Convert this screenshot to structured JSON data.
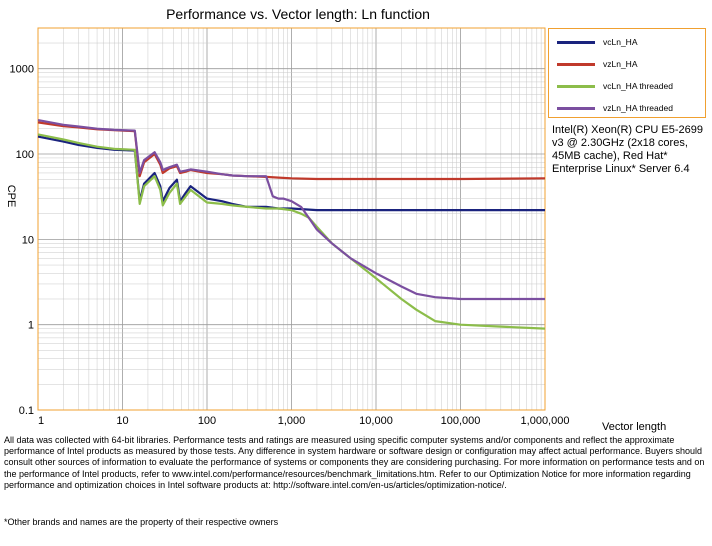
{
  "chart_data": {
    "type": "line",
    "title": "Performance vs. Vector length: Ln function",
    "xlabel": "Vector length",
    "ylabel": "CPE",
    "xscale": "log",
    "yscale": "log",
    "xlim": [
      1,
      1000000
    ],
    "ylim": [
      0.1,
      3000
    ],
    "grid": true,
    "legend_position": "right",
    "x_tick_labels": [
      "1",
      "10",
      "100",
      "1,000",
      "10,000",
      "100,000",
      "1,000,000"
    ],
    "y_tick_labels": [
      "0.1",
      "1",
      "10",
      "100",
      "1000"
    ],
    "series": [
      {
        "name": "vcLn_HA",
        "color": "#1a237e",
        "x": [
          1,
          2,
          3,
          5,
          8,
          14,
          16,
          18,
          24,
          28,
          30,
          36,
          44,
          48,
          56,
          64,
          100,
          150,
          200,
          300,
          500,
          700,
          1000,
          2000,
          10000,
          100000,
          1000000
        ],
        "y": [
          160,
          140,
          128,
          118,
          112,
          110,
          28,
          45,
          60,
          42,
          28,
          40,
          50,
          28,
          35,
          42,
          30,
          28,
          26,
          24,
          24,
          23,
          23,
          22,
          22,
          22,
          22
        ]
      },
      {
        "name": "vzLn_HA",
        "color": "#c0392b",
        "x": [
          1,
          2,
          3,
          5,
          8,
          14,
          16,
          18,
          24,
          28,
          30,
          36,
          44,
          48,
          56,
          64,
          100,
          150,
          200,
          300,
          500,
          700,
          1000,
          2000,
          10000,
          100000,
          1000000
        ],
        "y": [
          235,
          212,
          205,
          195,
          190,
          185,
          55,
          80,
          100,
          75,
          60,
          68,
          72,
          60,
          62,
          65,
          60,
          58,
          56,
          55,
          54,
          53,
          52,
          51,
          51,
          51,
          52
        ]
      },
      {
        "name": "vcLn_HA threaded",
        "color": "#8cbd4a",
        "x": [
          1,
          2,
          3,
          5,
          8,
          14,
          16,
          18,
          24,
          28,
          30,
          36,
          44,
          48,
          56,
          64,
          100,
          150,
          200,
          300,
          500,
          700,
          1000,
          1300,
          1600,
          2000,
          3000,
          5000,
          10000,
          20000,
          30000,
          50000,
          100000,
          300000,
          1000000
        ],
        "y": [
          170,
          148,
          135,
          122,
          115,
          112,
          26,
          42,
          55,
          38,
          25,
          35,
          45,
          26,
          32,
          38,
          27,
          26,
          25,
          24,
          23,
          23,
          22,
          20,
          18,
          14,
          9,
          6,
          3.5,
          2.0,
          1.5,
          1.1,
          1.0,
          0.95,
          0.9
        ]
      },
      {
        "name": "vzLn_HA threaded",
        "color": "#7b4fa0",
        "x": [
          1,
          2,
          3,
          5,
          8,
          14,
          16,
          18,
          24,
          28,
          30,
          36,
          44,
          48,
          56,
          64,
          100,
          150,
          200,
          300,
          500,
          600,
          700,
          800,
          1000,
          1300,
          1600,
          2000,
          3000,
          5000,
          10000,
          20000,
          30000,
          50000,
          100000,
          300000,
          1000000
        ],
        "y": [
          250,
          220,
          210,
          198,
          192,
          188,
          60,
          85,
          105,
          80,
          65,
          70,
          75,
          62,
          64,
          66,
          62,
          58,
          56,
          55,
          55,
          32,
          30,
          30,
          28,
          24,
          18,
          13,
          9,
          6,
          4,
          2.8,
          2.3,
          2.1,
          2.0,
          2.0,
          2.0
        ]
      }
    ]
  },
  "cpu_note": "Intel(R) Xeon(R) CPU E5-2699 v3 @ 2.30GHz (2x18 cores, 45MB cache), Red Hat* Enterprise Linux* Server 6.4",
  "disclaimer": "All data was collected with 64-bit libraries. Performance tests and ratings are measured using specific computer systems and/or components and reflect the approximate performance of Intel products as measured by those tests. Any difference in system hardware or software design or configuration may affect actual performance. Buyers should consult other sources of information to evaluate the performance of systems or components they are considering purchasing. For more information on performance tests and on the performance of Intel products, refer to www.intel.com/performance/resources/benchmark_limitations.htm. Refer to our Optimization Notice for more information regarding performance and optimization choices in Intel software products at: http://software.intel.com/en-us/articles/optimization-notice/.",
  "trademark": "*Other brands and names are the property of their respective owners"
}
